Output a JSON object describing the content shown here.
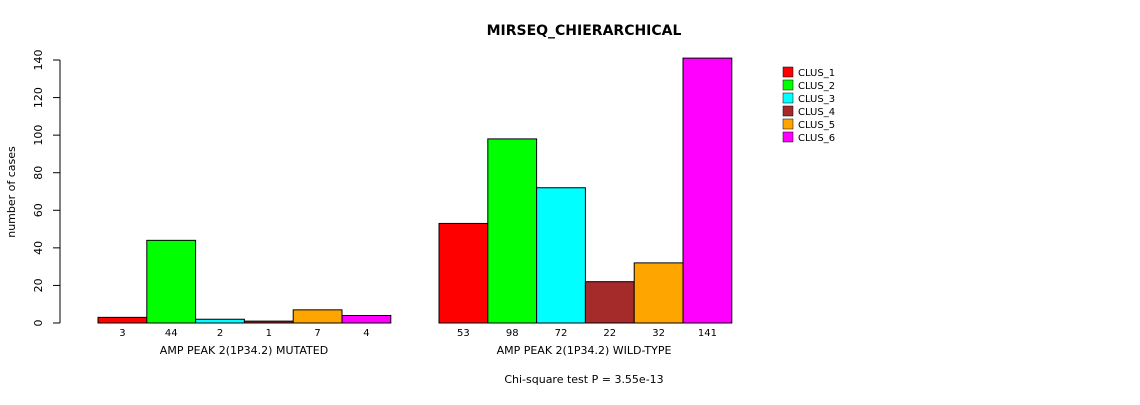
{
  "chart_data": {
    "type": "bar",
    "title": "MIRSEQ_CHIERARCHICAL",
    "ylabel": "number of cases",
    "ylim": [
      0,
      140
    ],
    "yticks": [
      0,
      20,
      40,
      60,
      80,
      100,
      120,
      140
    ],
    "groups": [
      {
        "label": "AMP PEAK  2(1P34.2) MUTATED",
        "values": [
          3,
          44,
          2,
          1,
          7,
          4
        ]
      },
      {
        "label": "AMP PEAK  2(1P34.2) WILD-TYPE",
        "values": [
          53,
          98,
          72,
          22,
          32,
          141
        ]
      }
    ],
    "series": [
      {
        "name": "CLUS_1",
        "color": "#ff0000"
      },
      {
        "name": "CLUS_2",
        "color": "#00ff00"
      },
      {
        "name": "CLUS_3",
        "color": "#00ffff"
      },
      {
        "name": "CLUS_4",
        "color": "#a52a2a"
      },
      {
        "name": "CLUS_5",
        "color": "#ffa500"
      },
      {
        "name": "CLUS_6",
        "color": "#ff00ff"
      }
    ],
    "legend_position": "top-right",
    "footnote": "Chi-square test P = 3.55e-13"
  }
}
